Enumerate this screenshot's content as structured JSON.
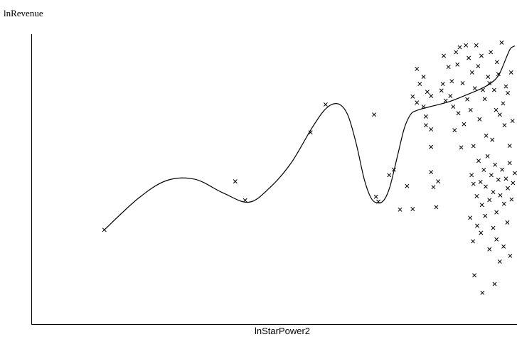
{
  "chart_data": {
    "type": "scatter",
    "title": "",
    "xlabel": "lnStarPower2",
    "ylabel": "lnRevenue",
    "xlim": [
      0,
      100
    ],
    "ylim": [
      0,
      100
    ],
    "grid": false,
    "ticks": false,
    "colors": {
      "axis": "#000000",
      "marker": "#000000",
      "curve": "#000000"
    },
    "series": [
      {
        "type": "scatter",
        "marker": "x",
        "points": [
          [
            12.8,
            28.5
          ],
          [
            40.6,
            46.2
          ],
          [
            42.7,
            39.3
          ],
          [
            56.6,
            64.1
          ],
          [
            59.8,
            74.3
          ],
          [
            70.1,
            70.6
          ],
          [
            70.5,
            40.6
          ],
          [
            71.0,
            38.8
          ],
          [
            73.3,
            48.5
          ],
          [
            74.3,
            50.5
          ],
          [
            75.6,
            35.9
          ],
          [
            77.1,
            44.5
          ],
          [
            78.3,
            36.1
          ],
          [
            78.3,
            77.2
          ],
          [
            79.2,
            75.0
          ],
          [
            79.2,
            87.3
          ],
          [
            79.8,
            81.8
          ],
          [
            80.6,
            73.5
          ],
          [
            80.6,
            84.4
          ],
          [
            81.1,
            66.7
          ],
          [
            81.1,
            69.9
          ],
          [
            81.4,
            78.9
          ],
          [
            82.2,
            77.4
          ],
          [
            82.2,
            65.2
          ],
          [
            82.2,
            58.8
          ],
          [
            82.2,
            49.6
          ],
          [
            82.7,
            44.1
          ],
          [
            83.3,
            36.8
          ],
          [
            83.7,
            46.2
          ],
          [
            84.4,
            79.4
          ],
          [
            84.7,
            81.8
          ],
          [
            84.9,
            92.1
          ],
          [
            85.3,
            75.7
          ],
          [
            85.9,
            88.0
          ],
          [
            86.3,
            77.4
          ],
          [
            86.6,
            82.8
          ],
          [
            86.9,
            73.5
          ],
          [
            87.2,
            64.9
          ],
          [
            87.5,
            93.4
          ],
          [
            87.8,
            88.9
          ],
          [
            88.0,
            71.1
          ],
          [
            88.3,
            95.2
          ],
          [
            88.6,
            58.6
          ],
          [
            88.9,
            82.1
          ],
          [
            89.2,
            67.1
          ],
          [
            89.6,
            95.9
          ],
          [
            89.9,
            76.2
          ],
          [
            90.2,
            91.3
          ],
          [
            90.6,
            72.3
          ],
          [
            90.9,
            86.0
          ],
          [
            91.2,
            59.1
          ],
          [
            91.5,
            80.2
          ],
          [
            91.8,
            95.9
          ],
          [
            92.2,
            88.3
          ],
          [
            92.5,
            68.9
          ],
          [
            92.9,
            92.1
          ],
          [
            93.2,
            79.6
          ],
          [
            93.6,
            76.3
          ],
          [
            93.9,
            62.9
          ],
          [
            94.3,
            84.4
          ],
          [
            94.6,
            82.1
          ],
          [
            94.9,
            93.4
          ],
          [
            95.2,
            61.4
          ],
          [
            95.6,
            79.6
          ],
          [
            96.0,
            72.3
          ],
          [
            96.2,
            89.8
          ],
          [
            96.5,
            85.4
          ],
          [
            96.8,
            70.6
          ],
          [
            97.2,
            96.9
          ],
          [
            97.5,
            74.7
          ],
          [
            97.8,
            66.7
          ],
          [
            98.1,
            80.9
          ],
          [
            98.5,
            78.5
          ],
          [
            98.9,
            59.2
          ],
          [
            99.2,
            86.0
          ],
          [
            99.5,
            68.3
          ],
          [
            90.8,
            48.5
          ],
          [
            91.2,
            45.3
          ],
          [
            91.9,
            40.8
          ],
          [
            92.3,
            53.7
          ],
          [
            92.7,
            46.0
          ],
          [
            93.0,
            37.6
          ],
          [
            93.4,
            50.4
          ],
          [
            93.8,
            44.3
          ],
          [
            94.2,
            55.4
          ],
          [
            94.6,
            39.4
          ],
          [
            95.0,
            48.5
          ],
          [
            95.4,
            42.3
          ],
          [
            95.8,
            52.3
          ],
          [
            96.1,
            34.9
          ],
          [
            96.5,
            46.8
          ],
          [
            96.9,
            41.1
          ],
          [
            97.3,
            50.5
          ],
          [
            97.7,
            38.0
          ],
          [
            98.1,
            47.2
          ],
          [
            98.5,
            43.7
          ],
          [
            98.9,
            52.9
          ],
          [
            99.3,
            39.6
          ],
          [
            99.6,
            45.6
          ],
          [
            100.0,
            49.2
          ],
          [
            90.5,
            32.9
          ],
          [
            91.1,
            24.3
          ],
          [
            92.0,
            30.0
          ],
          [
            92.8,
            27.4
          ],
          [
            93.7,
            33.6
          ],
          [
            94.6,
            21.4
          ],
          [
            95.4,
            29.2
          ],
          [
            96.1,
            25.0
          ],
          [
            96.8,
            16.9
          ],
          [
            97.6,
            22.4
          ],
          [
            98.4,
            31.2
          ],
          [
            99.0,
            19.0
          ],
          [
            91.4,
            11.9
          ],
          [
            93.1,
            5.5
          ],
          [
            95.7,
            8.7
          ]
        ]
      },
      {
        "type": "line",
        "points": [
          [
            12.8,
            28.5
          ],
          [
            20.0,
            40.0
          ],
          [
            26.0,
            46.5
          ],
          [
            32.0,
            47.0
          ],
          [
            38.0,
            42.0
          ],
          [
            43.5,
            38.6
          ],
          [
            48.0,
            44.0
          ],
          [
            52.5,
            53.0
          ],
          [
            57.0,
            66.0
          ],
          [
            60.0,
            73.0
          ],
          [
            62.5,
            74.5
          ],
          [
            64.5,
            70.5
          ],
          [
            66.3,
            60.0
          ],
          [
            68.0,
            47.0
          ],
          [
            69.5,
            40.0
          ],
          [
            71.0,
            38.3
          ],
          [
            72.3,
            39.6
          ],
          [
            73.5,
            44.5
          ],
          [
            75.0,
            55.0
          ],
          [
            76.5,
            65.5
          ],
          [
            77.8,
            70.5
          ],
          [
            79.0,
            72.0
          ],
          [
            82.0,
            73.5
          ],
          [
            86.0,
            75.3
          ],
          [
            90.0,
            78.0
          ],
          [
            93.0,
            80.2
          ],
          [
            95.0,
            82.2
          ],
          [
            96.5,
            84.8
          ],
          [
            97.5,
            88.5
          ],
          [
            98.4,
            92.3
          ],
          [
            99.1,
            94.8
          ],
          [
            100.0,
            95.7
          ]
        ]
      }
    ]
  }
}
